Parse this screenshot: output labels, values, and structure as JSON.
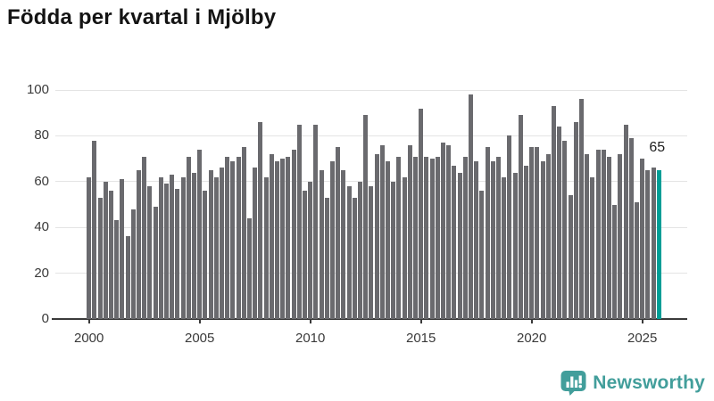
{
  "page": {
    "title": "Födda per kvartal i Mjölby"
  },
  "chart_data": {
    "type": "bar",
    "title": "Födda per kvartal i Mjölby",
    "start_year": 2000,
    "quarters_per_year": 4,
    "values": [
      62,
      78,
      53,
      60,
      56,
      43,
      61,
      36,
      48,
      65,
      71,
      58,
      49,
      62,
      59,
      63,
      57,
      62,
      71,
      64,
      74,
      56,
      65,
      62,
      66,
      71,
      69,
      71,
      75,
      44,
      66,
      86,
      62,
      72,
      69,
      70,
      71,
      74,
      85,
      56,
      60,
      85,
      65,
      53,
      69,
      75,
      65,
      58,
      53,
      60,
      89,
      58,
      72,
      76,
      69,
      60,
      71,
      62,
      76,
      71,
      92,
      71,
      70,
      71,
      77,
      76,
      67,
      64,
      71,
      98,
      69,
      56,
      75,
      69,
      71,
      62,
      80,
      64,
      89,
      67,
      75,
      75,
      69,
      72,
      93,
      84,
      78,
      54,
      86,
      96,
      72,
      62,
      74,
      74,
      71,
      50,
      72,
      85,
      79,
      51,
      70,
      65,
      66,
      65
    ],
    "highlight": {
      "index": 103,
      "label": "65"
    },
    "y_axis": {
      "ticks": [
        0,
        20,
        40,
        60,
        80,
        100
      ],
      "range": [
        0,
        100
      ]
    },
    "x_axis": {
      "tick_labels": [
        "2000",
        "2005",
        "2010",
        "2015",
        "2020",
        "2025"
      ],
      "tick_bar_indices": [
        0,
        20,
        40,
        60,
        80,
        100
      ]
    },
    "legend": "none",
    "grid": "horizontal",
    "colors": {
      "bar": "#6a6a6e",
      "highlight": "#009e96",
      "gridline": "#e4e4e4",
      "axis": "#3a3a3a",
      "tick_label": "#3a3a3a"
    }
  },
  "branding": {
    "name": "Newsworthy",
    "icon": "newsworthy-speech-bubble-chart-icon",
    "color": "#429e9b"
  }
}
